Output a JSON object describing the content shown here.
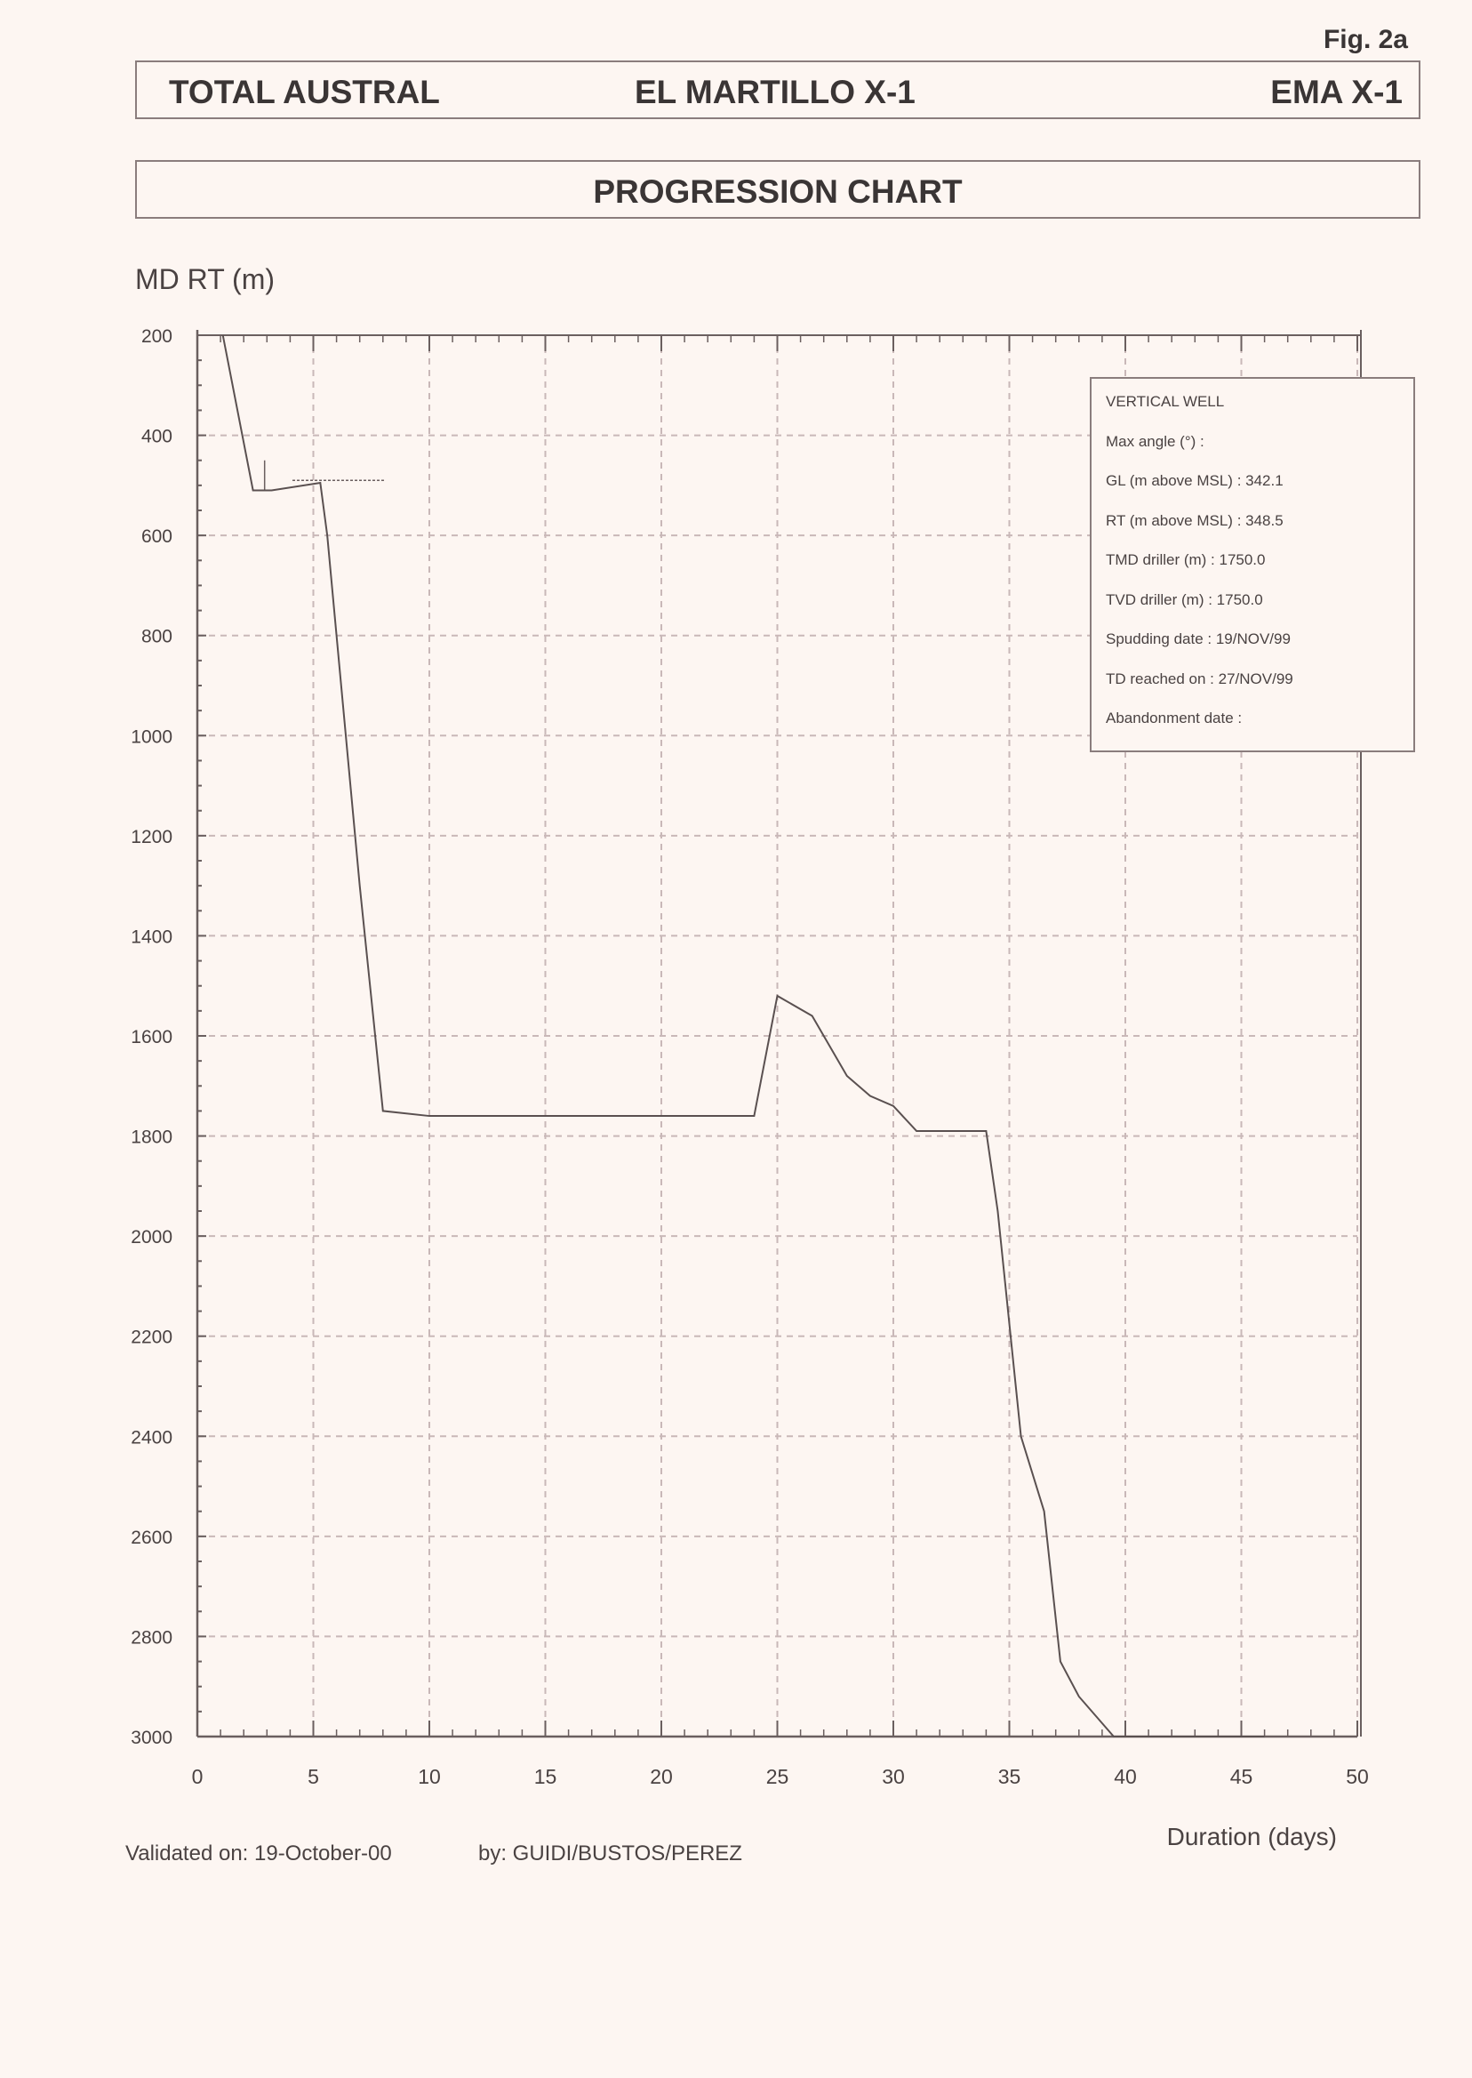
{
  "figure_label": "Fig. 2a",
  "header": {
    "company": "TOTAL AUSTRAL",
    "well_name": "EL MARTILLO X-1",
    "well_code": "EMA X-1"
  },
  "title": "PROGRESSION CHART",
  "info_box": {
    "lines": [
      "VERTICAL WELL",
      "Max angle (°) :",
      "GL (m above MSL) :  342.1",
      "RT (m above MSL) :  348.5",
      "TMD driller (m) :  1750.0",
      "TVD driller (m) :  1750.0",
      "Spudding date :  19/NOV/99",
      "TD reached on :  27/NOV/99",
      "Abandonment date :"
    ]
  },
  "footer": {
    "validated": "Validated on:  19-October-00",
    "by": "by:  GUIDI/BUSTOS/PEREZ"
  },
  "chart_data": {
    "type": "line",
    "title": "PROGRESSION CHART",
    "xlabel": "Duration (days)",
    "ylabel": "MD RT (m)",
    "xlim": [
      0,
      50
    ],
    "ylim": [
      200,
      3000
    ],
    "y_inverted": true,
    "xticks": [
      0,
      5,
      10,
      15,
      20,
      25,
      30,
      35,
      40,
      45,
      50
    ],
    "yticks": [
      200,
      400,
      600,
      800,
      1000,
      1200,
      1400,
      1600,
      1800,
      2000,
      2200,
      2400,
      2600,
      2800,
      3000
    ],
    "grid": "dashed",
    "legend": "none",
    "series": [
      {
        "points": [
          [
            1.1,
            200
          ],
          [
            2.4,
            510
          ],
          [
            3.2,
            510
          ],
          [
            5.3,
            495
          ],
          [
            5.6,
            600
          ],
          [
            6.2,
            900
          ],
          [
            7.0,
            1300
          ],
          [
            8.0,
            1750
          ],
          [
            10.0,
            1760
          ],
          [
            24.0,
            1760
          ],
          [
            25.0,
            1520
          ],
          [
            26.5,
            1560
          ],
          [
            28.0,
            1680
          ],
          [
            29.0,
            1720
          ],
          [
            30.0,
            1740
          ],
          [
            31.0,
            1790
          ],
          [
            34.0,
            1790
          ],
          [
            34.5,
            1950
          ],
          [
            35.5,
            2400
          ],
          [
            36.5,
            2550
          ],
          [
            37.2,
            2850
          ],
          [
            38.0,
            2920
          ],
          [
            39.5,
            3000
          ],
          [
            46.0,
            3000
          ]
        ]
      }
    ],
    "annotations": [
      {
        "type": "casing-marker",
        "x": [
          2.6,
          3.2
        ],
        "y": [
          450,
          510
        ]
      },
      {
        "type": "label",
        "x": [
          4.1,
          8.1
        ],
        "y": [
          490,
          490
        ],
        "text": ""
      }
    ]
  }
}
